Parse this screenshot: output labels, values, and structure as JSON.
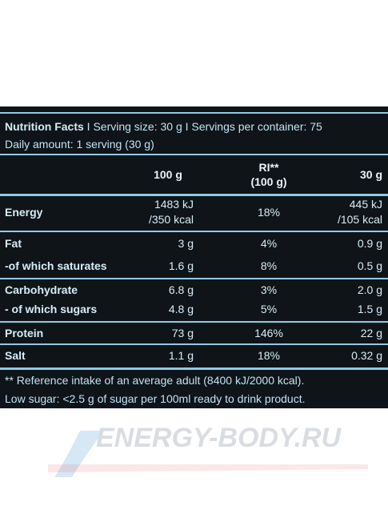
{
  "header": {
    "title": "Nutrition Facts",
    "serving": "I Serving size: 30 g I Servings per container: 75",
    "daily": "Daily amount: 1 serving (30 g)"
  },
  "columns": {
    "c100g": "100 g",
    "ri_line1": "RI**",
    "ri_line2": "(100 g)",
    "c30g": "30 g"
  },
  "rows": [
    {
      "label": "Energy",
      "v100_1": "1483 kJ",
      "v100_2": "/350 kcal",
      "ri": "18%",
      "v30_1": "445 kJ",
      "v30_2": "/105 kcal"
    },
    {
      "label": "Fat",
      "v100": "3 g",
      "ri": "4%",
      "v30": "0.9 g"
    },
    {
      "label": "-of which saturates",
      "v100": "1.6 g",
      "ri": "8%",
      "v30": "0.5 g"
    },
    {
      "label": "Carbohydrate",
      "v100": "6.8 g",
      "ri": "3%",
      "v30": "2.0 g"
    },
    {
      "label": "- of which sugars",
      "v100": "4.8 g",
      "ri": "5%",
      "v30": "1.5 g"
    },
    {
      "label": "Protein",
      "v100": "73 g",
      "ri": "146%",
      "v30": "22 g"
    },
    {
      "label": "Salt",
      "v100": "1.1 g",
      "ri": "18%",
      "v30": "0.32 g"
    }
  ],
  "notes": {
    "reference": "** Reference intake of an average adult (8400 kJ/2000 kcal).",
    "low_sugar": "Low sugar: <2.5 g of sugar per 100ml ready to drink product."
  },
  "watermark": {
    "text": "ENERGY-BODY.RU",
    "colors": {
      "blue": "#1e78c8",
      "red": "#e23a3a",
      "text": "#d9dde2"
    }
  },
  "colors": {
    "panel": "#0f1418",
    "line": "#8fcbe6",
    "text": "#e8f4fb"
  }
}
